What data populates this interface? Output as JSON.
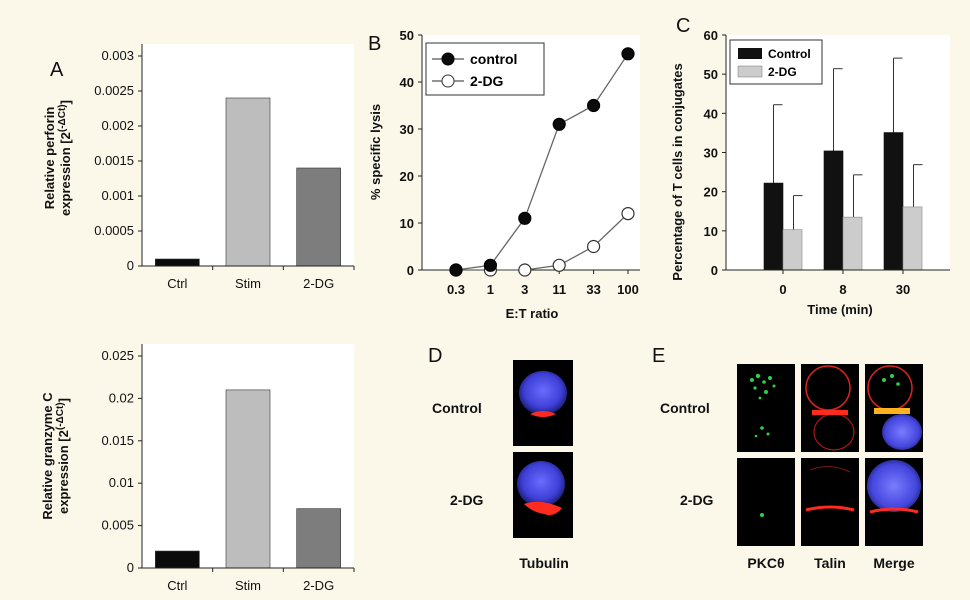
{
  "colors": {
    "bg": "#fbf8ea",
    "plot_bg": "#ffffff",
    "ctrl": "#0b0b0b",
    "stim": "#bdbdbd",
    "dg": "#7d7d7d",
    "control_bar": "#111111",
    "dg_bar": "#cccccc"
  },
  "chart_data": [
    {
      "panel": "A",
      "type": "bar",
      "ylabel_line1": "Relative perforin",
      "ylabel_line2": "expression [2",
      "ylabel_sup": "(-ΔCt)",
      "ylabel_close": "]",
      "categories": [
        "Ctrl",
        "Stim",
        "2-DG"
      ],
      "values": [
        0.0001,
        0.0024,
        0.0014
      ],
      "ylim": [
        0,
        0.003
      ],
      "yticks": [
        "0",
        "0.0005",
        "0.001",
        "0.0015",
        "0.002",
        "0.0025",
        "0.003"
      ]
    },
    {
      "panel": "",
      "type": "bar",
      "ylabel_line1": "Relative granzyme C",
      "ylabel_line2": "expression [2",
      "ylabel_sup": "(-ΔCt)",
      "ylabel_close": "]",
      "categories": [
        "Ctrl",
        "Stim",
        "2-DG"
      ],
      "values": [
        0.002,
        0.021,
        0.007
      ],
      "ylim": [
        0,
        0.025
      ],
      "yticks": [
        "0",
        "0.005",
        "0.01",
        "0.015",
        "0.02",
        "0.025"
      ]
    },
    {
      "panel": "B",
      "type": "line",
      "ylabel": "% specific lysis",
      "xlabel": "E:T ratio",
      "categories": [
        "0.3",
        "1",
        "3",
        "11",
        "33",
        "100"
      ],
      "ylim": [
        0,
        50
      ],
      "yticks": [
        "0",
        "10",
        "20",
        "30",
        "40",
        "50"
      ],
      "legend_position": "top-left",
      "series": [
        {
          "name": "control",
          "values": [
            0,
            1,
            11,
            31,
            35,
            46
          ]
        },
        {
          "name": "2-DG",
          "values": [
            0,
            0,
            0,
            1,
            5,
            12
          ]
        }
      ]
    },
    {
      "panel": "C",
      "type": "bar",
      "ylabel": "Percentage of T cells in conjugates",
      "xlabel": "Time (min)",
      "categories": [
        "0",
        "8",
        "30"
      ],
      "ylim": [
        0,
        60
      ],
      "yticks": [
        "0",
        "10",
        "20",
        "30",
        "40",
        "50",
        "60"
      ],
      "legend_position": "top-left",
      "series": [
        {
          "name": "Control",
          "values": [
            22.2,
            30.4,
            35.1
          ],
          "errors": [
            20,
            21,
            19
          ]
        },
        {
          "name": "2-DG",
          "values": [
            10.3,
            13.5,
            16.1
          ],
          "errors": [
            8.7,
            10.8,
            10.8
          ]
        }
      ]
    }
  ],
  "panel_d": {
    "label": "D",
    "rows": [
      "Control",
      "2-DG"
    ],
    "caption": "Tubulin"
  },
  "panel_e": {
    "label": "E",
    "rows": [
      "Control",
      "2-DG"
    ],
    "columns": [
      "PKCθ",
      "Talin",
      "Merge"
    ]
  }
}
